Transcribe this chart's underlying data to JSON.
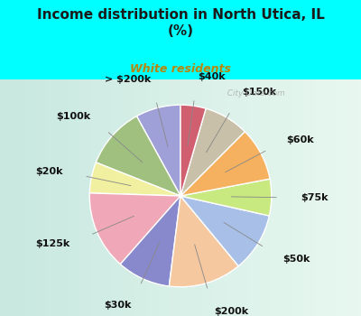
{
  "title": "Income distribution in North Utica, IL\n(%)",
  "subtitle": "White residents",
  "title_color": "#1a1a1a",
  "subtitle_color": "#b8860b",
  "fig_bg": "#00ffff",
  "chart_bg_left": "#d4ede8",
  "chart_bg_right": "#e8f8f0",
  "labels": [
    "> $200k",
    "$100k",
    "$20k",
    "$125k",
    "$30k",
    "$200k",
    "$50k",
    "$75k",
    "$60k",
    "$150k",
    "$40k"
  ],
  "values": [
    8.0,
    11.0,
    5.5,
    14.0,
    9.5,
    13.0,
    10.5,
    6.5,
    9.5,
    8.0,
    4.5
  ],
  "colors": [
    "#a0a0d8",
    "#a0c080",
    "#f0f0a0",
    "#f0a8b8",
    "#8888cc",
    "#f5c8a0",
    "#a8c0e8",
    "#c8e880",
    "#f5b060",
    "#c8c0a8",
    "#d06070"
  ],
  "startangle": 90,
  "wedge_edge_color": "white",
  "wedge_linewidth": 1.0,
  "label_fontsize": 8,
  "label_color": "#111111",
  "label_fontweight": "bold",
  "watermark": "  City-Data.com",
  "watermark_color": "#aaaaaa",
  "labeldistance": 1.32
}
